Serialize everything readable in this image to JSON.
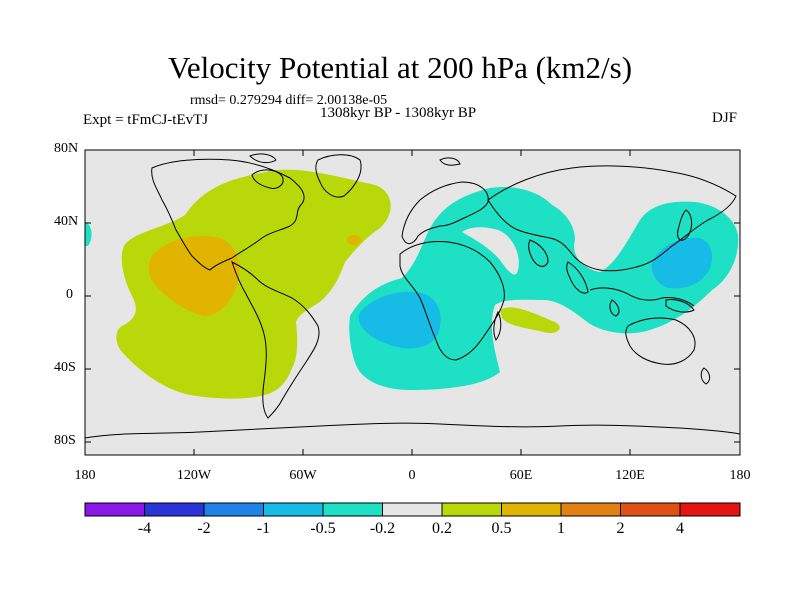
{
  "title": "Velocity Potential at 200 hPa (km2/s)",
  "stats": "rmsd= 0.279294 diff= 2.00138e-05",
  "period": "1308kyr BP - 1308kyr BP",
  "expt": "Expt = tFmCJ-tEvTJ",
  "season": "DJF",
  "axes": {
    "y_labels": [
      "80N",
      "40N",
      "0",
      "40S",
      "80S"
    ],
    "x_labels": [
      "180",
      "120W",
      "60W",
      "0",
      "60E",
      "120E",
      "180"
    ]
  },
  "colorbar": {
    "labels": [
      "-4",
      "-2",
      "-1",
      "-0.5",
      "-0.2",
      "0.2",
      "0.5",
      "1",
      "2",
      "4"
    ],
    "colors": [
      "#8a16e8",
      "#2b34d6",
      "#1e82e6",
      "#16bce6",
      "#1ee0c4",
      "#e6e6e6",
      "#b8d80a",
      "#e0b400",
      "#e28014",
      "#e05014",
      "#e41410"
    ]
  },
  "fields": {
    "ocean_background": "#e6e6e6",
    "positive_anomaly_west": "#b8d80a",
    "positive_anomaly_core": "#e0b400",
    "negative_anomaly_east": "#1ee0c4",
    "negative_anomaly_core": "#16bce6",
    "coastline": "#000000"
  }
}
